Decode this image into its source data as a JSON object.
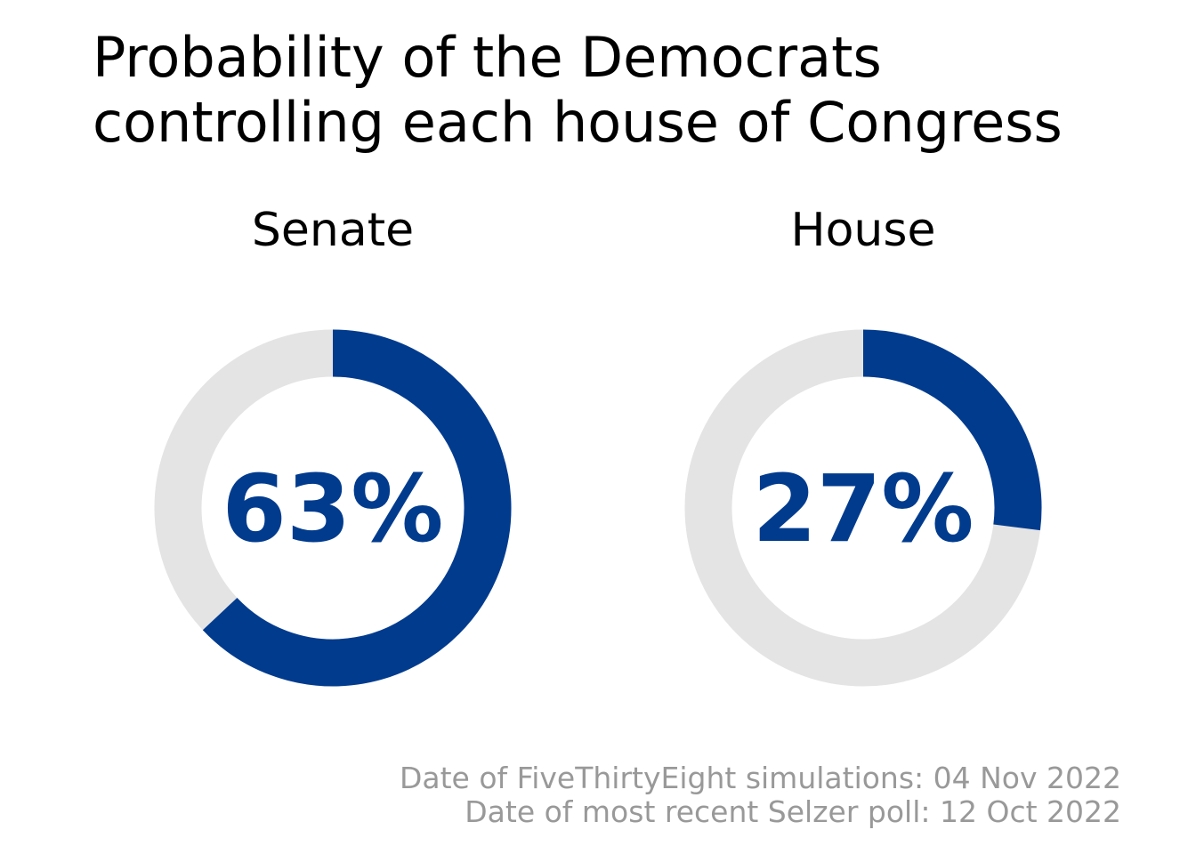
{
  "title_lines": [
    "Probability of the Democrats",
    "controlling each house of Congress"
  ],
  "footer_lines": [
    "Date of FiveThirtyEight simulations: 04 Nov 2022",
    "Date of most recent Selzer poll: 12 Oct 2022"
  ],
  "colors": {
    "accent": "#003b8e",
    "track": "#e4e4e4",
    "footer": "#999999"
  },
  "chart_data": [
    {
      "type": "pie",
      "title": "Senate",
      "value": 63,
      "label": "63%"
    },
    {
      "type": "pie",
      "title": "House",
      "value": 27,
      "label": "27%"
    }
  ]
}
